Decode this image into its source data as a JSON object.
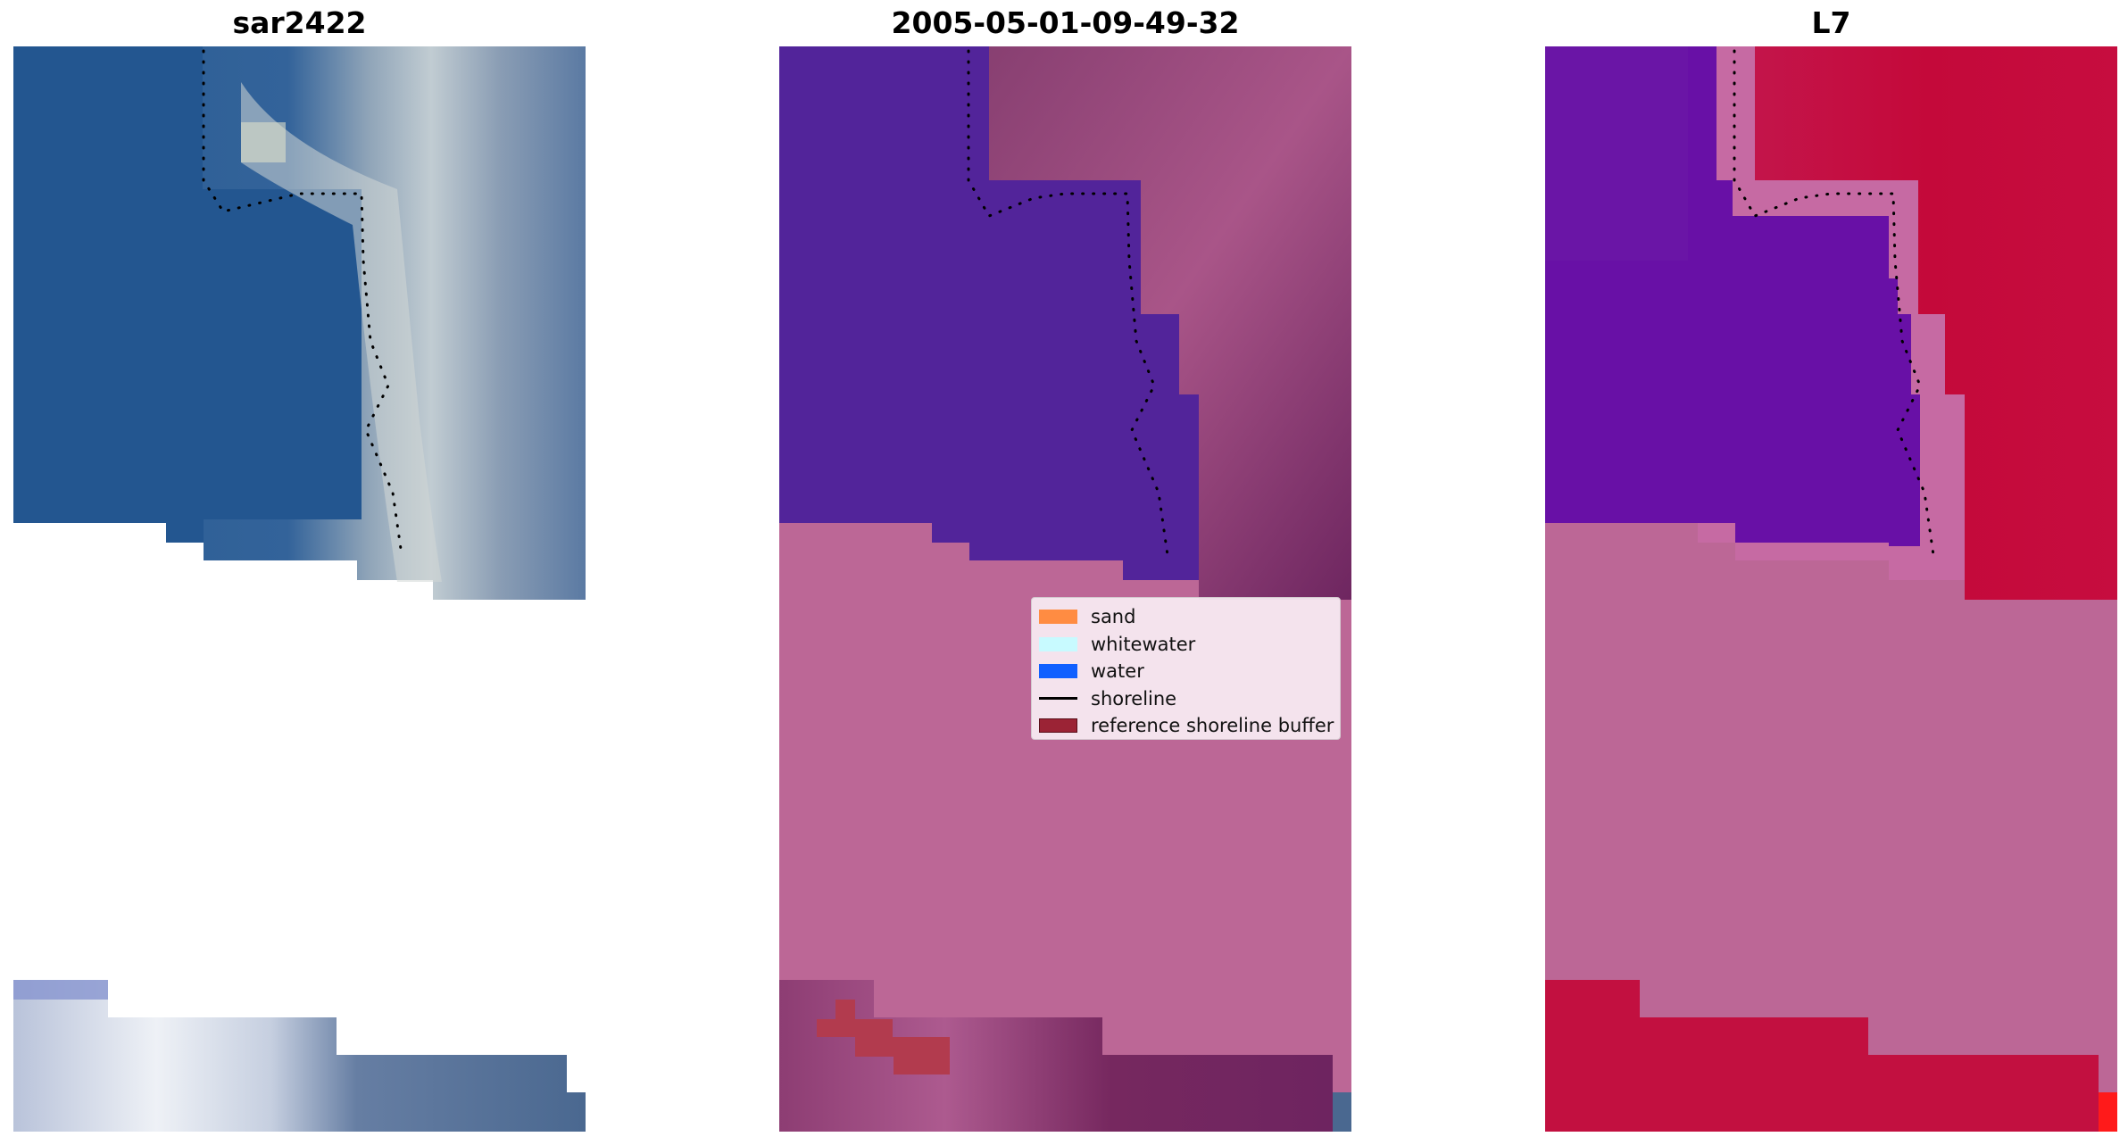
{
  "panels": [
    {
      "title": "sar2422"
    },
    {
      "title": "2005-05-01-09-49-32"
    },
    {
      "title": "L7"
    }
  ],
  "legend": {
    "items": [
      {
        "label": "sand",
        "color": "#ff8c42",
        "kind": "patch"
      },
      {
        "label": "whitewater",
        "color": "#c8faff",
        "kind": "patch"
      },
      {
        "label": "water",
        "color": "#1060ff",
        "kind": "patch"
      },
      {
        "label": "shoreline",
        "color": "#000000",
        "kind": "line"
      },
      {
        "label": "reference shoreline buffer",
        "color": "#9b2335",
        "kind": "patch"
      }
    ]
  },
  "colors": {
    "rgb_water": "#235690",
    "rgb_land": "#5a7ea6",
    "rgb_surf": "#b9c6cc",
    "class_water": "#52249a",
    "class_land": "#7b2c69",
    "class_buffer": "#bc6796",
    "class_buffer_patch": "#b23b4e",
    "mndwi_water": "#6810a6",
    "mndwi_land": "#c00d3e",
    "mndwi_shore": "#c66aa3"
  }
}
